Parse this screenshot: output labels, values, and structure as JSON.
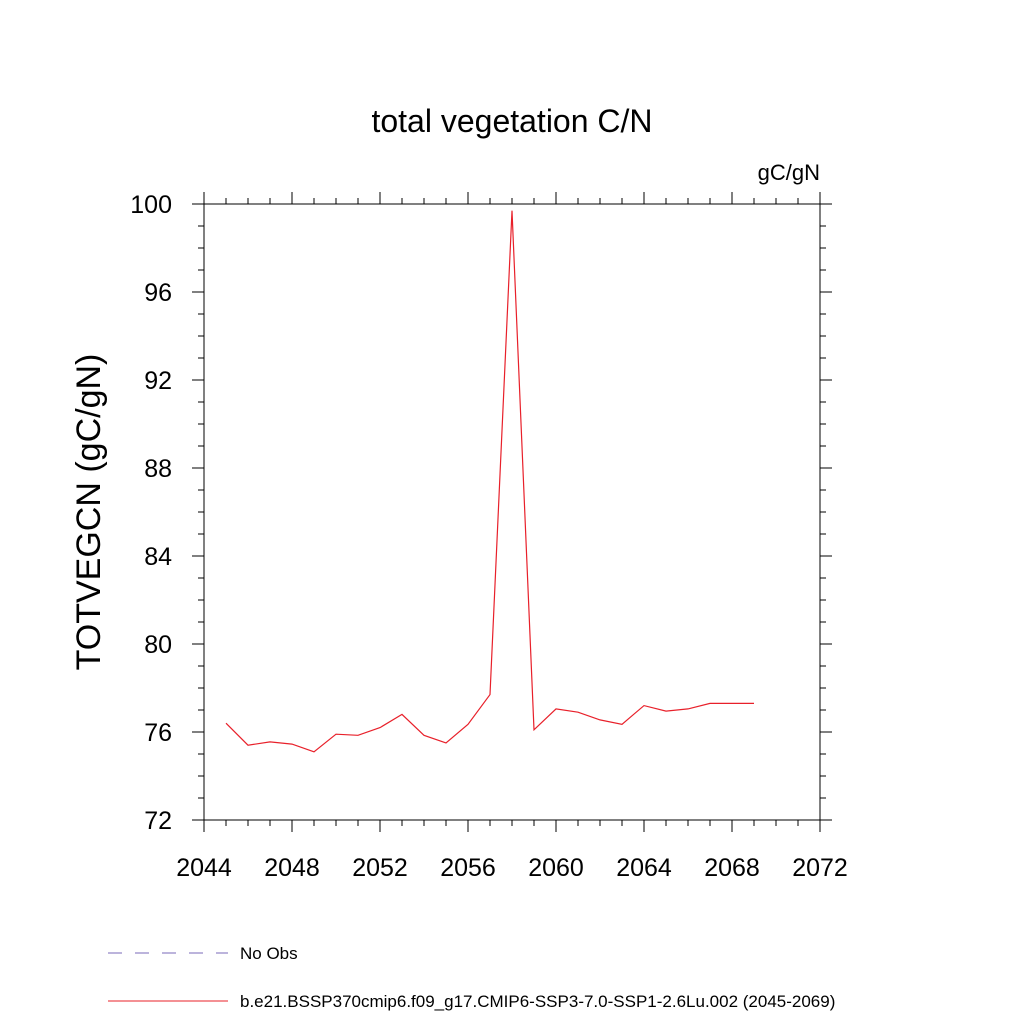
{
  "chart_data": {
    "type": "line",
    "title": "total vegetation C/N",
    "units": "gC/gN",
    "ylabel": "TOTVEGCN  (gC/gN)",
    "xlabel": "",
    "xlim": [
      2044,
      2072
    ],
    "ylim": [
      72,
      100
    ],
    "x_ticks": [
      2044,
      2048,
      2052,
      2056,
      2060,
      2064,
      2068,
      2072
    ],
    "y_ticks": [
      72,
      76,
      80,
      84,
      88,
      92,
      96,
      100
    ],
    "grid": false,
    "legend_position": "bottom",
    "series": [
      {
        "name": "b.e21.BSSP370cmip6.f09_g17.CMIP6-SSP3-7.0-SSP1-2.6Lu.002 (2045-2069)",
        "color": "#e8202a",
        "style": "solid",
        "x": [
          2045,
          2046,
          2047,
          2048,
          2049,
          2050,
          2051,
          2052,
          2053,
          2054,
          2055,
          2056,
          2057,
          2058,
          2059,
          2060,
          2061,
          2062,
          2063,
          2064,
          2065,
          2066,
          2067,
          2068,
          2069
        ],
        "y": [
          76.4,
          75.4,
          75.55,
          75.45,
          75.1,
          75.9,
          75.85,
          76.2,
          76.8,
          75.85,
          75.5,
          76.35,
          77.7,
          99.7,
          76.1,
          77.05,
          76.9,
          76.55,
          76.35,
          77.2,
          76.95,
          77.05,
          77.3,
          77.3,
          77.3
        ]
      }
    ],
    "legend": [
      {
        "label": "No Obs",
        "color": "#7a6ab8",
        "style": "dashed"
      },
      {
        "label": "b.e21.BSSP370cmip6.f09_g17.CMIP6-SSP3-7.0-SSP1-2.6Lu.002 (2045-2069)",
        "color": "#e8202a",
        "style": "solid"
      }
    ]
  }
}
